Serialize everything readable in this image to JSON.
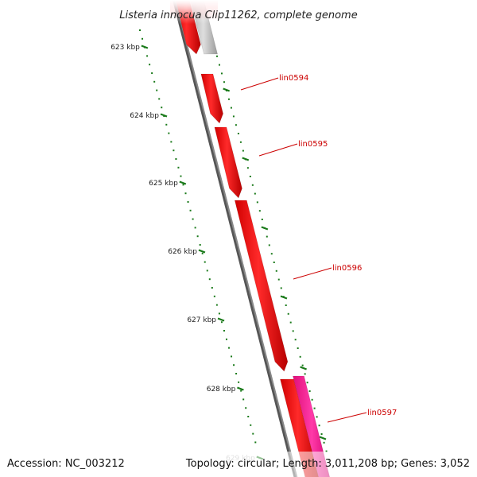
{
  "title": "Listeria innocua Clip11262, complete genome",
  "footer": {
    "accession": "Accession: NC_003212",
    "stats": "Topology: circular; Length: 3,011,208 bp; Genes: 3,052"
  },
  "colors": {
    "gene_forward": "#ff0000",
    "gene_forward_dark": "#c40000",
    "gene_pink": "#ff1493",
    "gene_grey": "#bdbdbd",
    "backbone": "#888888",
    "backbone_dark": "#555555",
    "tick": "#1a7a1a",
    "label": "#cc0000",
    "leader": "#cc0000"
  },
  "ticks": [
    {
      "label": "623 kbp"
    },
    {
      "label": "624 kbp"
    },
    {
      "label": "625 kbp"
    },
    {
      "label": "626 kbp"
    },
    {
      "label": "627 kbp"
    },
    {
      "label": "628 kbp"
    },
    {
      "label": "629 kbp"
    }
  ],
  "genes": [
    {
      "label": "lin0594"
    },
    {
      "label": "lin0595"
    },
    {
      "label": "lin0596"
    },
    {
      "label": "lin0597"
    }
  ]
}
